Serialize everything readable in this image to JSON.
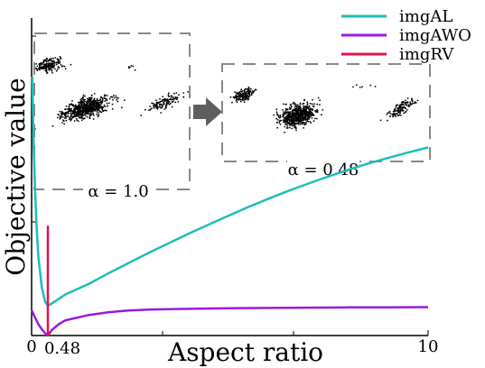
{
  "chart_data": {
    "type": "line",
    "xlabel": "Aspect ratio",
    "ylabel": "Objective value",
    "xlim": [
      0,
      10
    ],
    "ylim": [
      0,
      1
    ],
    "x_ticks": [
      "0",
      "0.48",
      "10"
    ],
    "highlight_x": 0.48,
    "legend_position": "top-right",
    "series": [
      {
        "name": "imgAL",
        "color": "#1ebdbb",
        "x": [
          0.02,
          0.05,
          0.1,
          0.15,
          0.2,
          0.3,
          0.4,
          0.48,
          0.6,
          0.8,
          1.0,
          1.5,
          2,
          2.5,
          3,
          3.5,
          4,
          4.5,
          5,
          5.5,
          6,
          6.5,
          7,
          7.5,
          8,
          8.5,
          9,
          9.5,
          10
        ],
        "y": [
          0.92,
          0.72,
          0.52,
          0.38,
          0.28,
          0.17,
          0.12,
          0.106,
          0.114,
          0.13,
          0.146,
          0.184,
          0.222,
          0.258,
          0.294,
          0.328,
          0.362,
          0.394,
          0.426,
          0.457,
          0.486,
          0.514,
          0.54,
          0.565,
          0.589,
          0.611,
          0.631,
          0.65,
          0.668
        ]
      },
      {
        "name": "imgAWO",
        "color": "#9a19e0",
        "x": [
          0.0,
          0.1,
          0.2,
          0.3,
          0.4,
          0.48,
          0.6,
          0.8,
          1.0,
          1.5,
          2,
          2.5,
          3,
          3.5,
          4,
          5,
          6,
          7,
          8,
          9,
          10
        ],
        "y": [
          0.09,
          0.064,
          0.04,
          0.022,
          0.008,
          0.0,
          0.02,
          0.04,
          0.054,
          0.073,
          0.083,
          0.089,
          0.092,
          0.094,
          0.095,
          0.097,
          0.098,
          0.099,
          0.1,
          0.1,
          0.101
        ]
      },
      {
        "name": "imgRV",
        "color": "#e3124b",
        "x": [
          0.48,
          0.48
        ],
        "y": [
          0.0,
          0.39
        ]
      }
    ],
    "insets": [
      {
        "label": "α = 1.0"
      },
      {
        "label": "α = 0.48"
      }
    ]
  }
}
